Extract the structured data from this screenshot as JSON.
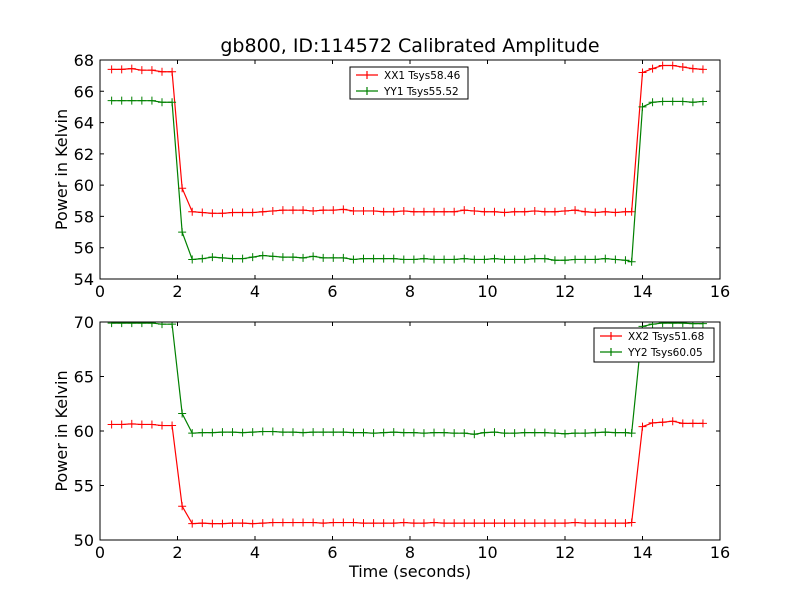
{
  "title": "gb800, ID:114572 Calibrated Amplitude",
  "chart_data": [
    {
      "type": "line",
      "ylabel": "Power in Kelvin",
      "xlabel": "",
      "xlim": [
        0,
        16
      ],
      "ylim": [
        54,
        68
      ],
      "xticks": [
        0,
        2,
        4,
        6,
        8,
        10,
        12,
        14,
        16
      ],
      "yticks": [
        54,
        56,
        58,
        60,
        62,
        64,
        66,
        68
      ],
      "grid": false,
      "legend_position": "top-center",
      "x": [
        0.3,
        0.56,
        0.82,
        1.08,
        1.34,
        1.6,
        1.86,
        2.12,
        2.38,
        2.64,
        2.9,
        3.16,
        3.42,
        3.68,
        3.94,
        4.2,
        4.46,
        4.72,
        4.98,
        5.24,
        5.5,
        5.76,
        6.02,
        6.28,
        6.54,
        6.8,
        7.06,
        7.32,
        7.58,
        7.84,
        8.1,
        8.36,
        8.62,
        8.88,
        9.14,
        9.4,
        9.66,
        9.92,
        10.18,
        10.44,
        10.7,
        10.96,
        11.22,
        11.48,
        11.74,
        12.0,
        12.26,
        12.52,
        12.78,
        13.04,
        13.3,
        13.56,
        13.72,
        14.0,
        14.26,
        14.52,
        14.78,
        15.04,
        15.3,
        15.56
      ],
      "series": [
        {
          "name": "XX1 Tsys58.46",
          "color": "#ff0000",
          "values": [
            67.4,
            67.4,
            67.45,
            67.35,
            67.35,
            67.25,
            67.25,
            59.8,
            58.3,
            58.25,
            58.2,
            58.2,
            58.25,
            58.25,
            58.25,
            58.3,
            58.35,
            58.4,
            58.4,
            58.4,
            58.35,
            58.4,
            58.4,
            58.45,
            58.35,
            58.35,
            58.35,
            58.3,
            58.3,
            58.35,
            58.3,
            58.3,
            58.3,
            58.3,
            58.3,
            58.4,
            58.35,
            58.3,
            58.3,
            58.25,
            58.3,
            58.3,
            58.35,
            58.3,
            58.3,
            58.35,
            58.4,
            58.3,
            58.25,
            58.3,
            58.25,
            58.3,
            58.3,
            67.2,
            67.45,
            67.65,
            67.65,
            67.55,
            67.45,
            67.4
          ]
        },
        {
          "name": "YY1 Tsys55.52",
          "color": "#008000",
          "values": [
            65.4,
            65.4,
            65.4,
            65.4,
            65.4,
            65.3,
            65.3,
            57.0,
            55.25,
            55.3,
            55.4,
            55.35,
            55.3,
            55.3,
            55.4,
            55.5,
            55.45,
            55.4,
            55.4,
            55.35,
            55.45,
            55.35,
            55.35,
            55.35,
            55.25,
            55.3,
            55.3,
            55.3,
            55.3,
            55.25,
            55.25,
            55.3,
            55.25,
            55.25,
            55.25,
            55.3,
            55.25,
            55.25,
            55.3,
            55.25,
            55.25,
            55.25,
            55.3,
            55.3,
            55.2,
            55.2,
            55.25,
            55.25,
            55.25,
            55.3,
            55.25,
            55.2,
            55.1,
            65.0,
            65.3,
            65.35,
            65.35,
            65.35,
            65.3,
            65.35
          ]
        }
      ]
    },
    {
      "type": "line",
      "ylabel": "Power in Kelvin",
      "xlabel": "Time (seconds)",
      "xlim": [
        0,
        16
      ],
      "ylim": [
        50,
        70
      ],
      "xticks": [
        0,
        2,
        4,
        6,
        8,
        10,
        12,
        14,
        16
      ],
      "yticks": [
        50,
        55,
        60,
        65,
        70
      ],
      "grid": false,
      "legend_position": "top-right",
      "x": [
        0.3,
        0.56,
        0.82,
        1.08,
        1.34,
        1.6,
        1.86,
        2.12,
        2.38,
        2.64,
        2.9,
        3.16,
        3.42,
        3.68,
        3.94,
        4.2,
        4.46,
        4.72,
        4.98,
        5.24,
        5.5,
        5.76,
        6.02,
        6.28,
        6.54,
        6.8,
        7.06,
        7.32,
        7.58,
        7.84,
        8.1,
        8.36,
        8.62,
        8.88,
        9.14,
        9.4,
        9.66,
        9.92,
        10.18,
        10.44,
        10.7,
        10.96,
        11.22,
        11.48,
        11.74,
        12.0,
        12.26,
        12.52,
        12.78,
        13.04,
        13.3,
        13.56,
        13.72,
        14.0,
        14.26,
        14.52,
        14.78,
        15.04,
        15.3,
        15.56
      ],
      "series": [
        {
          "name": "XX2 Tsys51.68",
          "color": "#ff0000",
          "values": [
            60.6,
            60.6,
            60.65,
            60.6,
            60.6,
            60.5,
            60.5,
            53.1,
            51.5,
            51.55,
            51.5,
            51.5,
            51.55,
            51.55,
            51.5,
            51.55,
            51.6,
            51.6,
            51.6,
            51.6,
            51.6,
            51.55,
            51.6,
            51.6,
            51.6,
            51.55,
            51.55,
            51.55,
            51.55,
            51.6,
            51.55,
            51.55,
            51.6,
            51.55,
            51.55,
            51.55,
            51.55,
            51.55,
            51.55,
            51.55,
            51.55,
            51.55,
            51.55,
            51.55,
            51.55,
            51.55,
            51.6,
            51.55,
            51.55,
            51.55,
            51.55,
            51.55,
            51.6,
            60.4,
            60.75,
            60.8,
            60.9,
            60.7,
            60.7,
            60.7
          ]
        },
        {
          "name": "YY2 Tsys60.05",
          "color": "#008000",
          "values": [
            69.9,
            69.9,
            69.9,
            69.9,
            69.9,
            69.8,
            69.8,
            61.6,
            59.8,
            59.85,
            59.85,
            59.9,
            59.9,
            59.85,
            59.9,
            59.95,
            59.95,
            59.9,
            59.9,
            59.85,
            59.9,
            59.9,
            59.9,
            59.9,
            59.85,
            59.85,
            59.8,
            59.85,
            59.9,
            59.85,
            59.85,
            59.8,
            59.85,
            59.85,
            59.8,
            59.8,
            59.7,
            59.85,
            59.9,
            59.8,
            59.8,
            59.85,
            59.85,
            59.85,
            59.8,
            59.75,
            59.8,
            59.8,
            59.85,
            59.9,
            59.85,
            59.85,
            59.8,
            69.6,
            69.8,
            69.9,
            69.9,
            69.9,
            69.85,
            69.85
          ]
        }
      ]
    }
  ]
}
